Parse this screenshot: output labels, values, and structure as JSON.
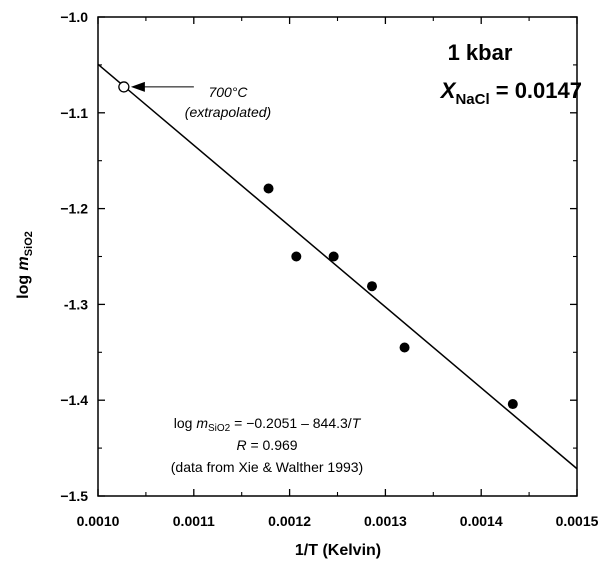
{
  "chart_data": {
    "type": "scatter",
    "xlabel": "1/T (Kelvin)",
    "ylabel": {
      "prefix": "log ",
      "var": "m",
      "sub": "SiO2"
    },
    "xlim": [
      0.001,
      0.0015
    ],
    "ylim": [
      -1.5,
      -1.0
    ],
    "x_ticks": [
      {
        "value": 0.001,
        "label": "0.0010"
      },
      {
        "value": 0.0011,
        "label": "0.0011"
      },
      {
        "value": 0.0012,
        "label": "0.0012"
      },
      {
        "value": 0.0013,
        "label": "0.0013"
      },
      {
        "value": 0.0014,
        "label": "0.0014"
      },
      {
        "value": 0.0015,
        "label": "0.0015"
      }
    ],
    "y_ticks": [
      {
        "value": -1.0,
        "label": "−1.0"
      },
      {
        "value": -1.1,
        "label": "−1.1"
      },
      {
        "value": -1.2,
        "label": "−1.2"
      },
      {
        "value": -1.3,
        "label": "-1.3"
      },
      {
        "value": -1.4,
        "label": "−1.4"
      },
      {
        "value": -1.5,
        "label": "−1.5"
      }
    ],
    "points": [
      {
        "x": 0.001178,
        "y": -1.179
      },
      {
        "x": 0.001207,
        "y": -1.25
      },
      {
        "x": 0.001246,
        "y": -1.25
      },
      {
        "x": 0.001286,
        "y": -1.281
      },
      {
        "x": 0.00132,
        "y": -1.345
      },
      {
        "x": 0.001433,
        "y": -1.404
      }
    ],
    "extrapolated_point": {
      "x": 0.001027,
      "y": -1.073
    },
    "fit": {
      "intercept": -0.2051,
      "slope": -844.3,
      "x_range": [
        0.001,
        0.0015
      ]
    },
    "grid": false,
    "conditions": {
      "pressure": "1 kbar",
      "x_var": "X",
      "x_sub": "NaCl",
      "x_value": " = 0.0147"
    },
    "arrow_label": {
      "line1": "700°C",
      "line2": "(extrapolated)"
    },
    "equation": {
      "prefix": "log ",
      "var": "m",
      "sub": "SiO2",
      "mid": " = −0.2051 – 844.3/",
      "tvar": "T",
      "r_var": "R",
      "r_rest": " = 0.969",
      "source": "(data from Xie & Walther 1993)"
    }
  }
}
